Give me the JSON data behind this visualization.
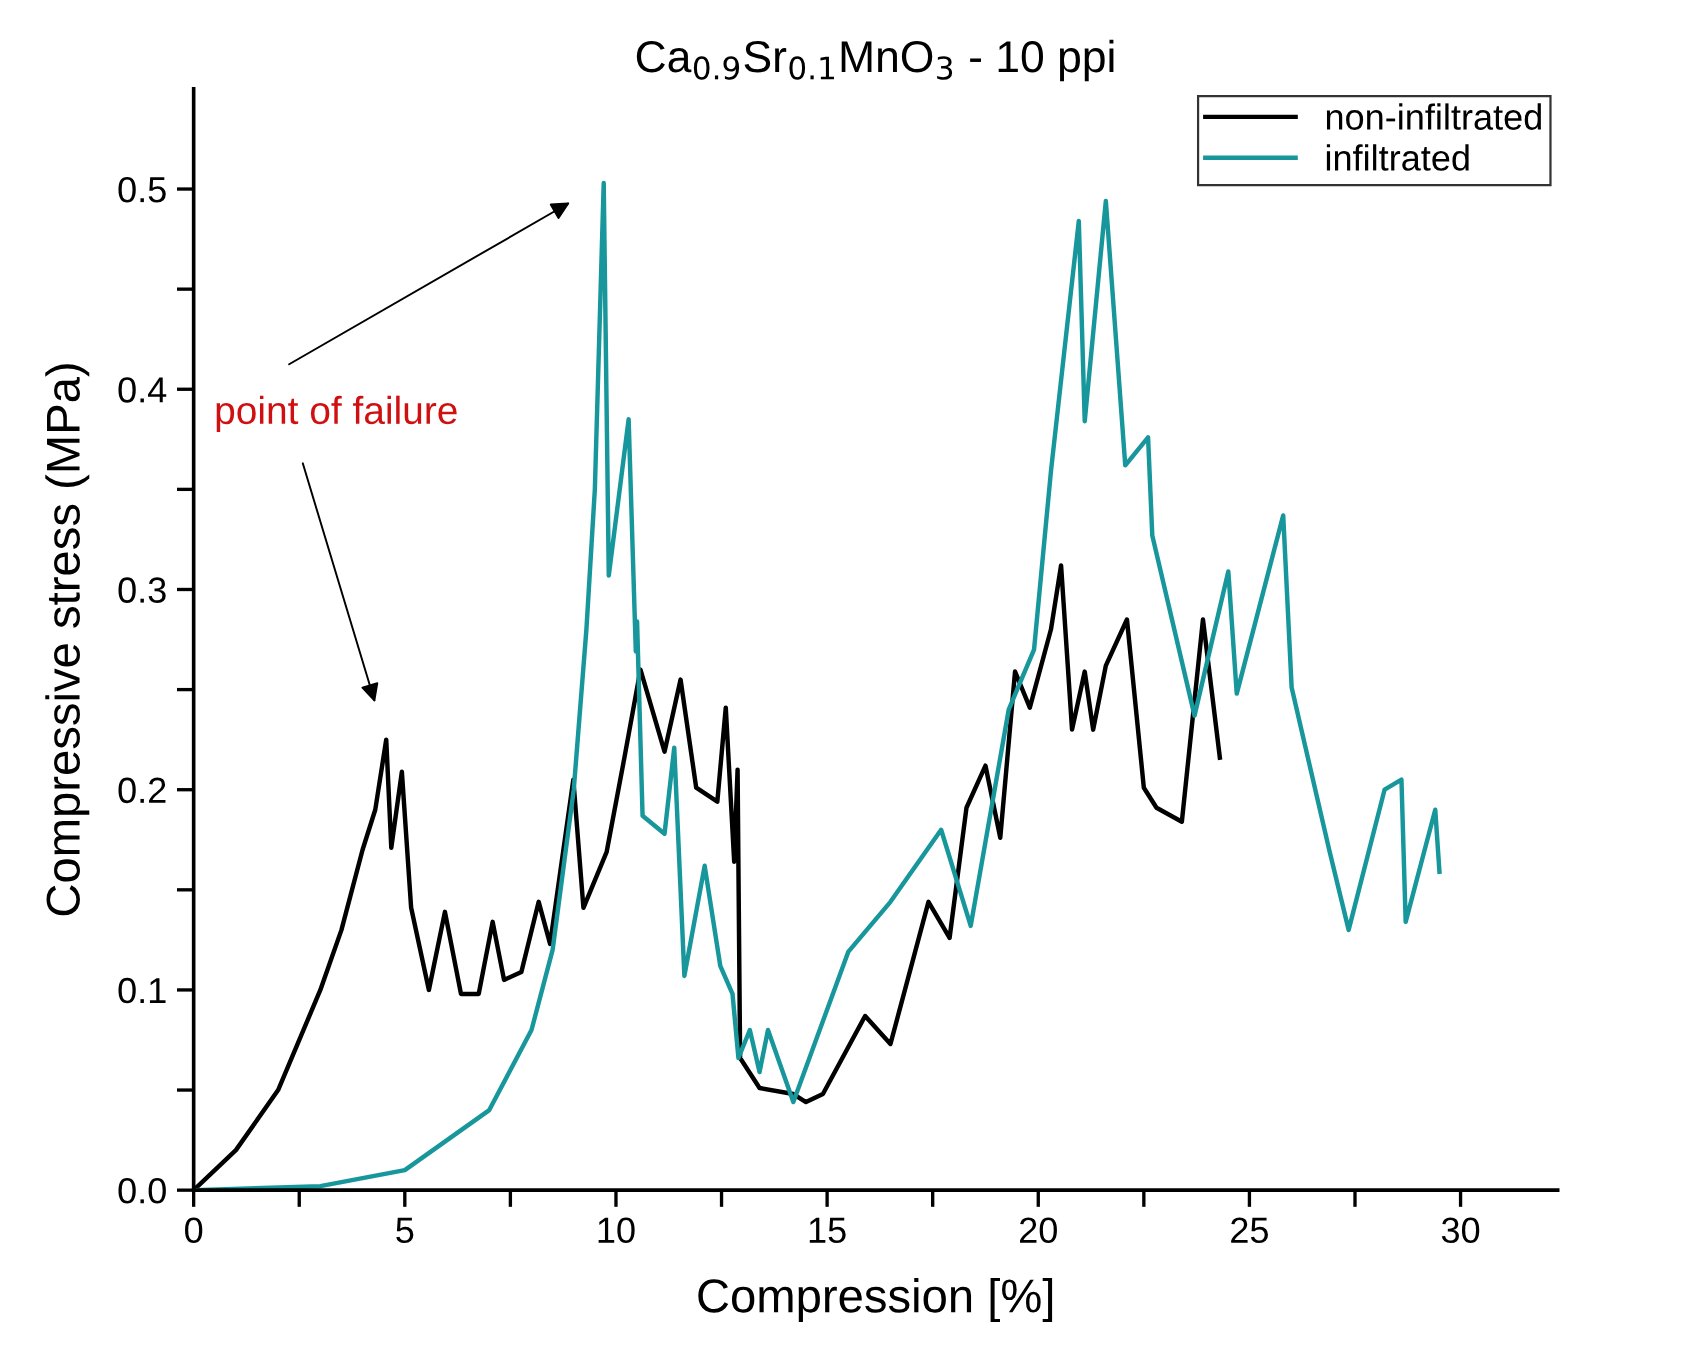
{
  "chart_data": {
    "type": "line",
    "title": "Ca$_{0.9}$Sr$_{0.1}$MnO$_{3}$ - 10 ppi",
    "xlabel": "Compression [%]",
    "ylabel": "Compressive stress (MPa)",
    "annotations": [
      "point of failure"
    ],
    "xlim": [
      0,
      32.3
    ],
    "ylim": [
      0,
      0.55
    ],
    "xticks": [
      0,
      {
        "value": 2.5,
        "label": null
      },
      5,
      {
        "value": 7.5,
        "label": null
      },
      10,
      {
        "value": 12.5,
        "label": null
      },
      15,
      {
        "value": 17.5,
        "label": null
      },
      20,
      {
        "value": 22.5,
        "label": null
      },
      25,
      {
        "value": 27.5,
        "label": null
      },
      30
    ],
    "yticks": [
      {
        "value": 0,
        "label": "0.0"
      },
      {
        "value": 0.05,
        "label": null
      },
      0.1,
      {
        "value": 0.15,
        "label": null
      },
      0.2,
      {
        "value": 0.25,
        "label": null
      },
      0.3,
      {
        "value": 0.35,
        "label": null
      },
      0.4,
      {
        "value": 0.45,
        "label": null
      },
      0.5
    ],
    "grid": false,
    "legend": "top right",
    "marker": "none",
    "line_style": "solid",
    "series": [
      {
        "name": "non-infiltrated",
        "color": "#000000",
        "x": [
          0,
          1,
          2,
          3,
          3.5,
          4,
          4.3,
          4.56,
          4.68,
          4.93,
          5.15,
          5.57,
          5.95,
          6.33,
          6.75,
          7.08,
          7.35,
          7.76,
          8.17,
          8.44,
          8.99,
          9.23,
          9.78,
          10.2,
          10.58,
          11.15,
          11.53,
          11.9,
          12.4,
          12.6,
          12.8,
          12.88,
          12.94,
          13.4,
          14.2,
          14.5,
          14.9,
          15.9,
          16.5,
          17.4,
          17.9,
          18.3,
          18.75,
          19.1,
          19.45,
          19.8,
          20.3,
          20.54,
          20.8,
          21.1,
          21.3,
          21.6,
          22.1,
          22.5,
          22.8,
          23.4,
          23.9,
          24.3
        ],
        "values": [
          0,
          0.02,
          0.05,
          0.1,
          0.13,
          0.17,
          0.19,
          0.225,
          0.171,
          0.209,
          0.141,
          0.1,
          0.139,
          0.098,
          0.098,
          0.134,
          0.105,
          0.109,
          0.144,
          0.123,
          0.205,
          0.141,
          0.169,
          0.216,
          0.26,
          0.219,
          0.255,
          0.201,
          0.194,
          0.241,
          0.164,
          0.21,
          0.066,
          0.051,
          0.048,
          0.044,
          0.048,
          0.087,
          0.073,
          0.144,
          0.126,
          0.191,
          0.212,
          0.176,
          0.259,
          0.241,
          0.28,
          0.312,
          0.23,
          0.259,
          0.23,
          0.262,
          0.285,
          0.201,
          0.191,
          0.184,
          0.285,
          0.216
        ]
      },
      {
        "name": "infiltrated",
        "color": "#17979b",
        "x": [
          0,
          3,
          5,
          7,
          8,
          8.5,
          9,
          9.3,
          9.5,
          9.71,
          9.83,
          10.3,
          10.47,
          10.5,
          10.63,
          11.15,
          11.38,
          11.62,
          12.1,
          12.47,
          12.76,
          12.9,
          13.17,
          13.4,
          13.6,
          14.2,
          15.5,
          16.5,
          17.7,
          18.4,
          19.3,
          19.9,
          20.3,
          20.96,
          21.1,
          21.6,
          22.06,
          22.6,
          22.7,
          23.7,
          24.5,
          24.7,
          25.8,
          26.0,
          26.9,
          27.35,
          28.2,
          28.6,
          28.7,
          29.4,
          29.5
        ],
        "values": [
          0,
          0.002,
          0.01,
          0.04,
          0.08,
          0.12,
          0.2,
          0.28,
          0.35,
          0.503,
          0.307,
          0.385,
          0.269,
          0.284,
          0.187,
          0.178,
          0.221,
          0.107,
          0.162,
          0.112,
          0.098,
          0.066,
          0.08,
          0.059,
          0.08,
          0.044,
          0.119,
          0.144,
          0.18,
          0.132,
          0.24,
          0.27,
          0.359,
          0.484,
          0.384,
          0.494,
          0.362,
          0.376,
          0.327,
          0.237,
          0.309,
          0.248,
          0.337,
          0.251,
          0.169,
          0.13,
          0.2,
          0.205,
          0.134,
          0.19,
          0.159
        ]
      }
    ]
  }
}
